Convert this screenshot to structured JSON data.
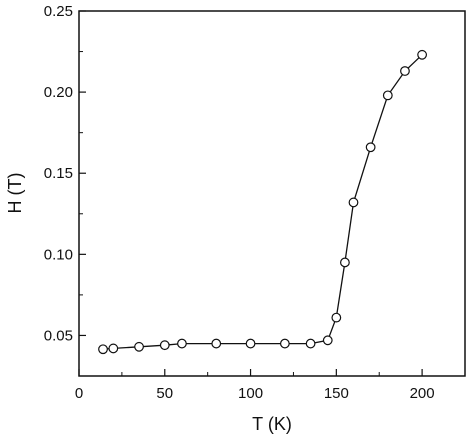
{
  "chart_data": {
    "type": "line",
    "title": "",
    "xlabel": "T (K)",
    "ylabel": "H (T)",
    "xlim": [
      0,
      225
    ],
    "ylim": [
      0.025,
      0.25
    ],
    "xticks": [
      0,
      50,
      100,
      150,
      200
    ],
    "xtick_labels": [
      "0",
      "50",
      "100",
      "150",
      "200"
    ],
    "yticks": [
      0.05,
      0.1,
      0.15,
      0.2,
      0.25
    ],
    "ytick_labels": [
      "0.05",
      "0.10",
      "0.15",
      "0.20",
      "0.25"
    ],
    "grid": false,
    "legend": "none",
    "marker": "open-circle",
    "line_color": "#111111",
    "series": [
      {
        "x": [
          14,
          20,
          35,
          50,
          60,
          80,
          100,
          120,
          135,
          145,
          150,
          155,
          160,
          170,
          180,
          190,
          200
        ],
        "y": [
          0.0415,
          0.042,
          0.043,
          0.044,
          0.045,
          0.045,
          0.045,
          0.045,
          0.045,
          0.047,
          0.061,
          0.095,
          0.132,
          0.166,
          0.198,
          0.213,
          0.223
        ]
      }
    ]
  }
}
